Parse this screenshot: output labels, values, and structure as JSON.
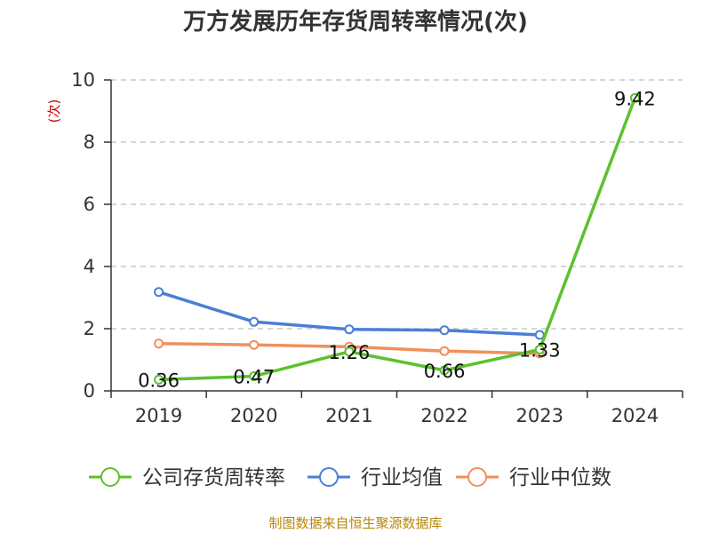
{
  "chart_data": {
    "type": "line",
    "title": "万方发展历年存货周转率情况(次)",
    "ylabel": "(次)",
    "x": [
      "2019",
      "2020",
      "2021",
      "2022",
      "2023",
      "2024"
    ],
    "ylim": [
      0,
      10
    ],
    "yticks": [
      0,
      2,
      4,
      6,
      8,
      10
    ],
    "grid": true,
    "legend": "bottom",
    "series": [
      {
        "name": "公司存货周转率",
        "color": "#5cc12e",
        "values": [
          0.36,
          0.47,
          1.26,
          0.66,
          1.33,
          9.42
        ],
        "labels": [
          "0.36",
          "0.47",
          "1.26",
          "0.66",
          "1.33",
          "9.42"
        ]
      },
      {
        "name": "行业均值",
        "color": "#4a7fd6",
        "values": [
          3.18,
          2.22,
          1.98,
          1.95,
          1.8,
          null
        ]
      },
      {
        "name": "行业中位数",
        "color": "#f0905c",
        "values": [
          1.52,
          1.48,
          1.42,
          1.28,
          1.2,
          null
        ]
      }
    ]
  },
  "source": "制图数据来自恒生聚源数据库"
}
